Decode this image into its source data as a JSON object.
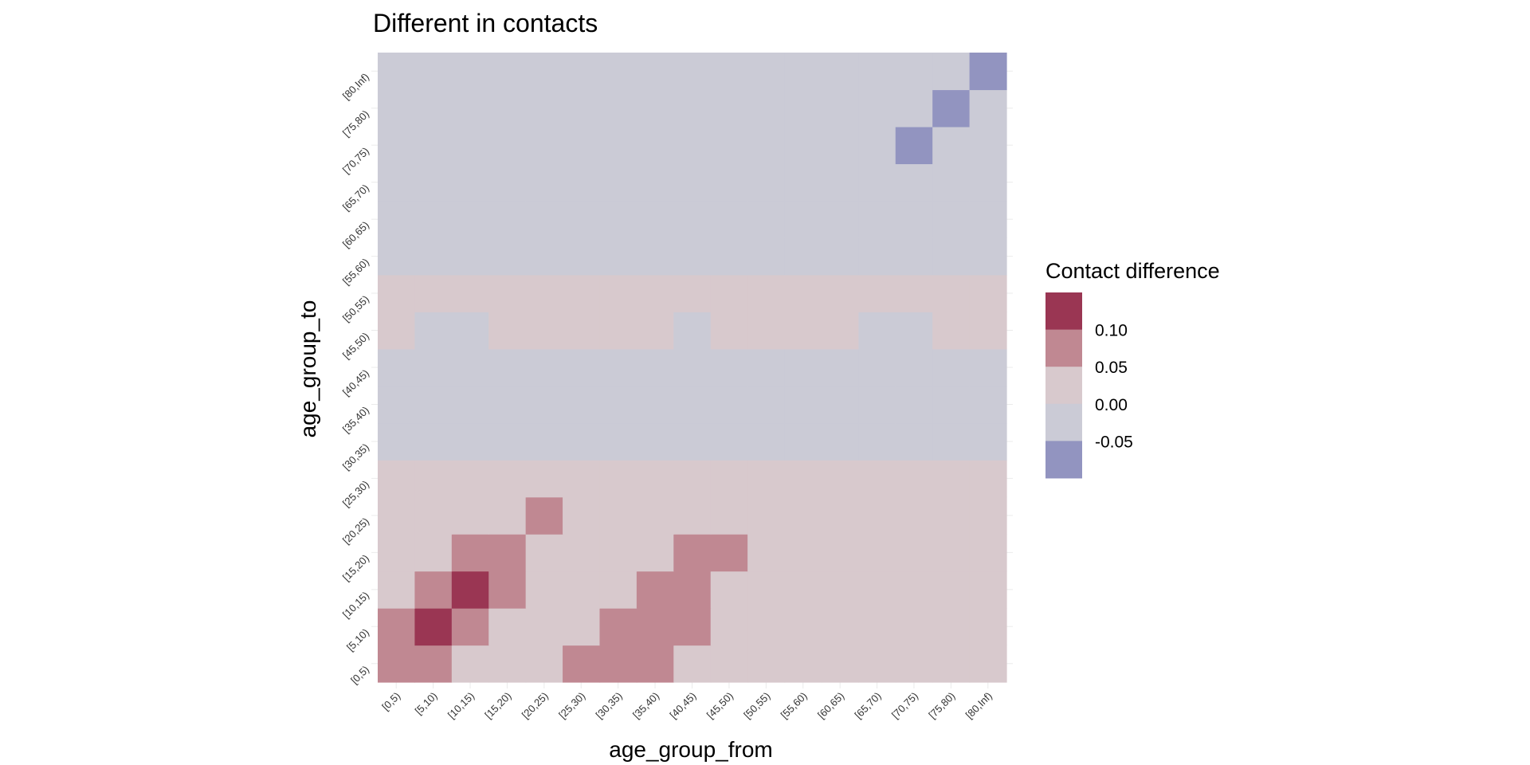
{
  "chart_data": {
    "type": "heatmap",
    "title": "Different in contacts",
    "xlabel": "age_group_from",
    "ylabel": "age_group_to",
    "categories": [
      "[0,5)",
      "[5,10)",
      "[10,15)",
      "[15,20)",
      "[20,25)",
      "[25,30)",
      "[30,35)",
      "[35,40)",
      "[40,45)",
      "[45,50)",
      "[50,55)",
      "[55,60)",
      "[60,65)",
      "[65,70)",
      "[70,75)",
      "[75,80)",
      "[80,Inf)"
    ],
    "rows_order": "bottom-to-top",
    "values": [
      [
        0.07,
        0.07,
        0.02,
        0.02,
        0.02,
        0.07,
        0.07,
        0.07,
        0.02,
        0.02,
        0.02,
        0.02,
        0.02,
        0.02,
        0.02,
        0.02,
        0.02
      ],
      [
        0.07,
        0.12,
        0.07,
        0.02,
        0.02,
        0.02,
        0.07,
        0.07,
        0.07,
        0.02,
        0.02,
        0.02,
        0.02,
        0.02,
        0.02,
        0.02,
        0.02
      ],
      [
        0.02,
        0.07,
        0.12,
        0.07,
        0.02,
        0.02,
        0.02,
        0.07,
        0.07,
        0.02,
        0.02,
        0.02,
        0.02,
        0.02,
        0.02,
        0.02,
        0.02
      ],
      [
        0.02,
        0.02,
        0.07,
        0.07,
        0.02,
        0.02,
        0.02,
        0.02,
        0.07,
        0.07,
        0.02,
        0.02,
        0.02,
        0.02,
        0.02,
        0.02,
        0.02
      ],
      [
        0.02,
        0.02,
        0.02,
        0.02,
        0.07,
        0.02,
        0.02,
        0.02,
        0.02,
        0.02,
        0.02,
        0.02,
        0.02,
        0.02,
        0.02,
        0.02,
        0.02
      ],
      [
        0.02,
        0.02,
        0.02,
        0.02,
        0.02,
        0.02,
        0.02,
        0.02,
        0.02,
        0.02,
        0.02,
        0.02,
        0.02,
        0.02,
        0.02,
        0.02,
        0.02
      ],
      [
        -0.02,
        -0.02,
        -0.02,
        -0.02,
        -0.02,
        -0.02,
        -0.02,
        -0.02,
        -0.02,
        -0.02,
        -0.02,
        -0.02,
        -0.02,
        -0.02,
        -0.02,
        -0.02,
        -0.02
      ],
      [
        -0.02,
        -0.02,
        -0.02,
        -0.02,
        -0.02,
        -0.02,
        -0.02,
        -0.02,
        -0.02,
        -0.02,
        -0.02,
        -0.02,
        -0.02,
        -0.02,
        -0.02,
        -0.02,
        -0.02
      ],
      [
        -0.02,
        -0.02,
        -0.02,
        -0.02,
        -0.02,
        -0.02,
        -0.02,
        -0.02,
        -0.02,
        -0.02,
        -0.02,
        -0.02,
        -0.02,
        -0.02,
        -0.02,
        -0.02,
        -0.02
      ],
      [
        0.02,
        -0.02,
        -0.02,
        0.02,
        0.02,
        0.02,
        0.02,
        0.02,
        -0.02,
        0.02,
        0.02,
        0.02,
        0.02,
        -0.02,
        -0.02,
        0.02,
        0.02
      ],
      [
        0.02,
        0.02,
        0.02,
        0.02,
        0.02,
        0.02,
        0.02,
        0.02,
        0.02,
        0.02,
        0.02,
        0.02,
        0.02,
        0.02,
        0.02,
        0.02,
        0.02
      ],
      [
        -0.02,
        -0.02,
        -0.02,
        -0.02,
        -0.02,
        -0.02,
        -0.02,
        -0.02,
        -0.02,
        -0.02,
        -0.02,
        -0.02,
        -0.02,
        -0.02,
        -0.02,
        -0.02,
        -0.02
      ],
      [
        -0.02,
        -0.02,
        -0.02,
        -0.02,
        -0.02,
        -0.02,
        -0.02,
        -0.02,
        -0.02,
        -0.02,
        -0.02,
        -0.02,
        -0.02,
        -0.02,
        -0.02,
        -0.02,
        -0.02
      ],
      [
        -0.02,
        -0.02,
        -0.02,
        -0.02,
        -0.02,
        -0.02,
        -0.02,
        -0.02,
        -0.02,
        -0.02,
        -0.02,
        -0.02,
        -0.02,
        -0.02,
        -0.02,
        -0.02,
        -0.02
      ],
      [
        -0.02,
        -0.02,
        -0.02,
        -0.02,
        -0.02,
        -0.02,
        -0.02,
        -0.02,
        -0.02,
        -0.02,
        -0.02,
        -0.02,
        -0.02,
        -0.02,
        -0.07,
        -0.02,
        -0.02
      ],
      [
        -0.02,
        -0.02,
        -0.02,
        -0.02,
        -0.02,
        -0.02,
        -0.02,
        -0.02,
        -0.02,
        -0.02,
        -0.02,
        -0.02,
        -0.02,
        -0.02,
        -0.02,
        -0.07,
        -0.02
      ],
      [
        -0.02,
        -0.02,
        -0.02,
        -0.02,
        -0.02,
        -0.02,
        -0.02,
        -0.02,
        -0.02,
        -0.02,
        -0.02,
        -0.02,
        -0.02,
        -0.02,
        -0.02,
        -0.02,
        -0.07
      ]
    ],
    "legend": {
      "title": "Contact difference",
      "placement": "right",
      "breaks": [
        -0.05,
        0.0,
        0.05,
        0.1
      ],
      "break_labels": [
        "-0.05",
        "0.00",
        "0.05",
        "0.10"
      ],
      "bins": [
        {
          "min": 0.1,
          "color": "#9a3653"
        },
        {
          "min": 0.05,
          "color": "#c08892"
        },
        {
          "min": 0.0,
          "color": "#d8c9cd"
        },
        {
          "min": -0.05,
          "color": "#cbcbd6"
        },
        {
          "min": -1,
          "color": "#9294c0"
        }
      ]
    }
  }
}
